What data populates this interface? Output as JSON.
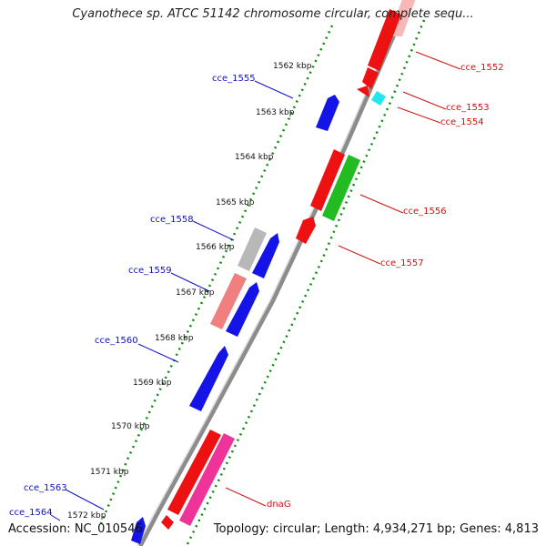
{
  "title": "Cyanothece sp. ATCC 51142 chromosome circular, complete sequ...",
  "accession": "Accession: NC_010546",
  "summary": "Topology: circular; Length: 4,934,271 bp; Genes: 4,813",
  "colors": {
    "backbone": "#8c8c8c",
    "tick": "#0a8a0a",
    "label_left": "#1010c8",
    "label_right": "#d01010",
    "blue": "#1414e6",
    "red": "#ee1111",
    "green": "#22bb22",
    "pink": "#ee3399",
    "salmon": "#f08080",
    "lightpink": "#f8b8b8",
    "gray": "#b8b8b8",
    "cyan": "#22e8ee"
  },
  "kbp_labels": [
    "1562 kbp",
    "1563 kbp",
    "1564 kbp",
    "1565 kbp",
    "1566 kbp",
    "1567 kbp",
    "1568 kbp",
    "1569 kbp",
    "1570 kbp",
    "1571 kbp",
    "1572 kbp"
  ],
  "gene_labels": {
    "cce_1552": "cce_1552",
    "cce_1553": "cce_1553",
    "cce_1554": "cce_1554",
    "cce_1555": "cce_1555",
    "cce_1556": "cce_1556",
    "cce_1557": "cce_1557",
    "cce_1558": "cce_1558",
    "cce_1559": "cce_1559",
    "cce_1560": "cce_1560",
    "cce_1563": "cce_1563",
    "cce_1564": "cce_1564",
    "dnaG": "dnaG"
  }
}
